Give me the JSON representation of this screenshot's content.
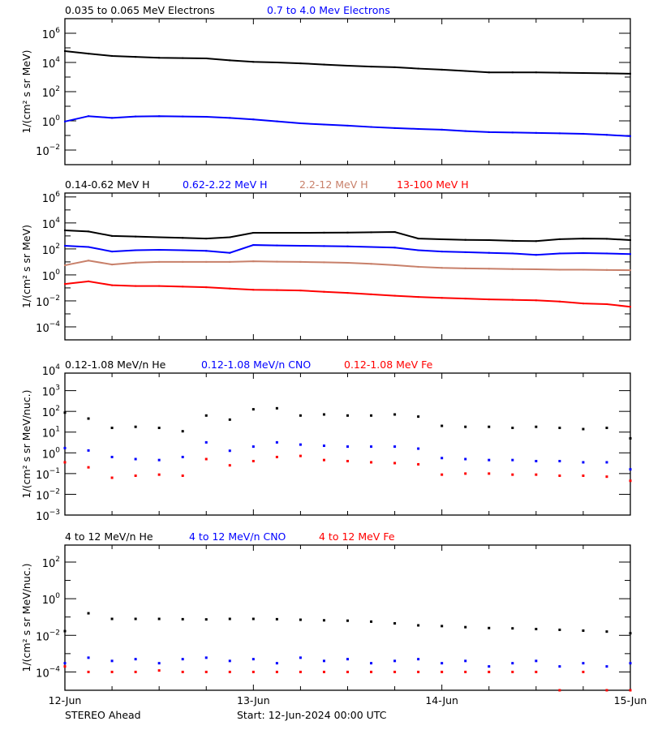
{
  "colors": {
    "black": "#000000",
    "blue": "#0000ff",
    "tan": "#c8806a",
    "red": "#ff0000"
  },
  "footer": {
    "spacecraft": "STEREO Ahead",
    "start": "Start: 12-Jun-2024 00:00 UTC"
  },
  "x_tick_labels": [
    "12-Jun",
    "13-Jun",
    "14-Jun",
    "15-Jun"
  ],
  "chart_data": [
    {
      "type": "line",
      "ylabel": "1/(cm² s sr MeV)",
      "ylog": true,
      "ylim": [
        0.001,
        10000000.0
      ],
      "yticks": [
        1000000.0,
        10000.0,
        100.0,
        1.0,
        0.01
      ],
      "xlim": [
        "2024-06-12T00:00",
        "2024-06-15T00:00"
      ],
      "x_step_hours": 3,
      "series": [
        {
          "name": "0.035 to 0.065 MeV Electrons",
          "color": "black",
          "values": [
            60000.0,
            40000.0,
            28000.0,
            24000.0,
            21000.0,
            20000.0,
            19000.0,
            14000.0,
            11000.0,
            10000.0,
            8700.0,
            7200.0,
            6000.0,
            5200.0,
            4700.0,
            3800.0,
            3200.0,
            2600.0,
            2100.0,
            2100.0,
            2100.0,
            2000.0,
            1900.0,
            1800.0,
            1700.0
          ]
        },
        {
          "name": "0.7 to 4.0 Mev Electrons",
          "color": "blue",
          "values": [
            0.9,
            2.1,
            1.6,
            2.0,
            2.1,
            2.0,
            1.9,
            1.6,
            1.26,
            0.93,
            0.68,
            0.56,
            0.47,
            0.38,
            0.32,
            0.28,
            0.25,
            0.2,
            0.17,
            0.16,
            0.15,
            0.14,
            0.13,
            0.11,
            0.09
          ]
        }
      ]
    },
    {
      "type": "line",
      "ylabel": "1/(cm² s sr MeV)",
      "ylog": true,
      "ylim": [
        1e-05,
        2000000.0
      ],
      "yticks": [
        1000000.0,
        10000.0,
        100.0,
        1.0,
        0.01,
        0.0001
      ],
      "xlim": [
        "2024-06-12T00:00",
        "2024-06-15T00:00"
      ],
      "x_step_hours": 3,
      "series": [
        {
          "name": "0.14-0.62 MeV H",
          "color": "black",
          "values": [
            2700,
            2200,
            1000,
            890,
            790,
            710,
            630,
            790,
            1740,
            1740,
            1740,
            1780,
            1820,
            1900,
            2000,
            630,
            550,
            500,
            480,
            420,
            400,
            560,
            630,
            600,
            480
          ]
        },
        {
          "name": "0.62-2.22 MeV H",
          "color": "blue",
          "values": [
            174,
            141,
            63,
            79,
            85,
            79,
            71,
            50,
            200,
            186,
            174,
            166,
            158,
            141,
            126,
            79,
            63,
            56,
            50,
            45,
            35,
            45,
            48,
            45,
            40
          ]
        },
        {
          "name": "2.2-12 MeV H",
          "color": "tan",
          "values": [
            5.5,
            12.6,
            6.3,
            8.9,
            10,
            10,
            10,
            10,
            11.2,
            10.5,
            10,
            9.3,
            8.5,
            7.1,
            5.6,
            4.2,
            3.5,
            3.2,
            3.0,
            2.8,
            2.7,
            2.5,
            2.5,
            2.4,
            2.3
          ]
        },
        {
          "name": "13-100 MeV H",
          "color": "red",
          "values": [
            0.2,
            0.32,
            0.16,
            0.14,
            0.14,
            0.126,
            0.112,
            0.089,
            0.072,
            0.068,
            0.063,
            0.05,
            0.041,
            0.032,
            0.025,
            0.02,
            0.017,
            0.015,
            0.013,
            0.012,
            0.011,
            0.0089,
            0.0063,
            0.0056,
            0.0035
          ]
        }
      ]
    },
    {
      "type": "scatter",
      "ylabel": "1/(cm² s sr MeV/nuc.)",
      "ylog": true,
      "ylim": [
        0.001,
        7000.0
      ],
      "yticks": [
        10000.0,
        1000.0,
        100.0,
        10.0,
        1.0,
        0.1,
        0.01,
        0.001
      ],
      "xlim": [
        "2024-06-12T00:00",
        "2024-06-15T00:00"
      ],
      "x_step_hours": 3,
      "series": [
        {
          "name": "0.12-1.08 MeV/n He",
          "color": "black",
          "values": [
            87,
            45,
            16,
            18,
            16,
            11,
            63,
            40,
            126,
            141,
            63,
            71,
            63,
            63,
            71,
            56,
            20,
            18,
            18,
            16,
            18,
            16,
            14,
            16,
            5
          ]
        },
        {
          "name": "0.12-1.08 MeV/n CNO",
          "color": "blue",
          "values": [
            1.7,
            1.3,
            0.63,
            0.5,
            0.45,
            0.63,
            3.2,
            1.26,
            2.0,
            3.2,
            2.5,
            2.2,
            2.0,
            2.0,
            2.0,
            1.6,
            0.56,
            0.5,
            0.45,
            0.45,
            0.4,
            0.4,
            0.35,
            0.35,
            0.16
          ]
        },
        {
          "name": "0.12-1.08 MeV Fe",
          "color": "red",
          "values": [
            0.35,
            0.2,
            0.063,
            0.079,
            0.089,
            0.079,
            0.5,
            0.25,
            0.4,
            0.63,
            0.71,
            0.45,
            0.4,
            0.35,
            0.32,
            0.28,
            0.089,
            0.1,
            0.1,
            0.089,
            0.089,
            0.079,
            0.079,
            0.071,
            0.045
          ]
        }
      ]
    },
    {
      "type": "scatter",
      "ylabel": "1/(cm² s sr MeV/nuc.)",
      "ylog": true,
      "ylim": [
        1e-05,
        850.0
      ],
      "yticks": [
        100.0,
        1.0,
        0.01,
        0.0001
      ],
      "xlim": [
        "2024-06-12T00:00",
        "2024-06-15T00:00"
      ],
      "x_step_hours": 3,
      "series": [
        {
          "name": "4 to 12 MeV/n He",
          "color": "black",
          "values": [
            0.017,
            0.16,
            0.079,
            0.079,
            0.079,
            0.076,
            0.074,
            0.079,
            0.079,
            0.076,
            0.071,
            0.066,
            0.063,
            0.056,
            0.045,
            0.035,
            0.032,
            0.028,
            0.025,
            0.024,
            0.022,
            0.02,
            0.018,
            0.016,
            0.013
          ]
        },
        {
          "name": "4 to 12 MeV/n CNO",
          "color": "blue",
          "values": [
            0.0003,
            0.0006,
            0.0004,
            0.0005,
            0.0003,
            0.0005,
            0.0006,
            0.0004,
            0.0005,
            0.0003,
            0.0006,
            0.0004,
            0.0005,
            0.0003,
            0.0004,
            0.0005,
            0.0003,
            0.0004,
            0.0002,
            0.0003,
            0.0004,
            0.0002,
            0.0003,
            0.0002,
            0.0003
          ]
        },
        {
          "name": "4 to 12 MeV Fe",
          "color": "red",
          "values": [
            0.0002,
            0.0001,
            0.0001,
            0.0001,
            0.00012,
            0.0001,
            0.0001,
            0.0001,
            0.0001,
            0.0001,
            0.0001,
            0.0001,
            0.0001,
            0.0001,
            0.0001,
            0.0001,
            0.0001,
            0.0001,
            0.0001,
            0.0001,
            0.0001,
            1e-05,
            0.0001,
            1e-05,
            1e-05
          ]
        }
      ]
    }
  ]
}
